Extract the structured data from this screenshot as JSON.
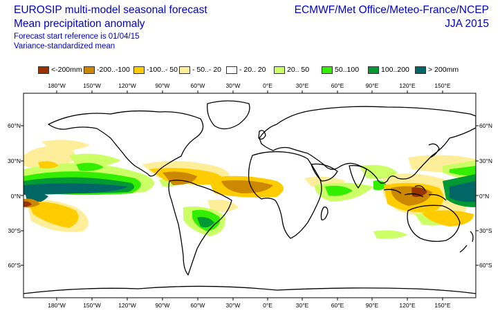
{
  "header": {
    "title_line1": "EUROSIP multi-model seasonal forecast",
    "title_line2": "Mean precipitation anomaly",
    "subtitle_line1": "Forecast start reference is 01/04/15",
    "subtitle_line2": "Variance-standardized mean",
    "organizations": "ECMWF/Met Office/Meteo-France/NCEP",
    "season": "JJA 2015"
  },
  "legend": [
    {
      "label": "<-200mm",
      "color": "#993300"
    },
    {
      "label": "-200..-100",
      "color": "#cc8800"
    },
    {
      "label": "-100..- 50",
      "color": "#ffcc00"
    },
    {
      "label": "- 50..- 20",
      "color": "#ffee99"
    },
    {
      "label": "- 20.. 20",
      "color": "#ffffff"
    },
    {
      "label": "20.. 50",
      "color": "#ccff66"
    },
    {
      "label": "50..100",
      "color": "#33ee00"
    },
    {
      "label": "100..200",
      "color": "#009933"
    },
    {
      "label": "> 200mm",
      "color": "#006666"
    }
  ],
  "map": {
    "longitude_labels": [
      "180°W",
      "150°W",
      "120°W",
      "90°W",
      "60°W",
      "30°W",
      "0°E",
      "30°E",
      "60°E",
      "90°E",
      "120°E",
      "150°E"
    ],
    "latitude_labels": [
      "60°N",
      "30°N",
      "0°N",
      "30°S",
      "60°S"
    ]
  }
}
